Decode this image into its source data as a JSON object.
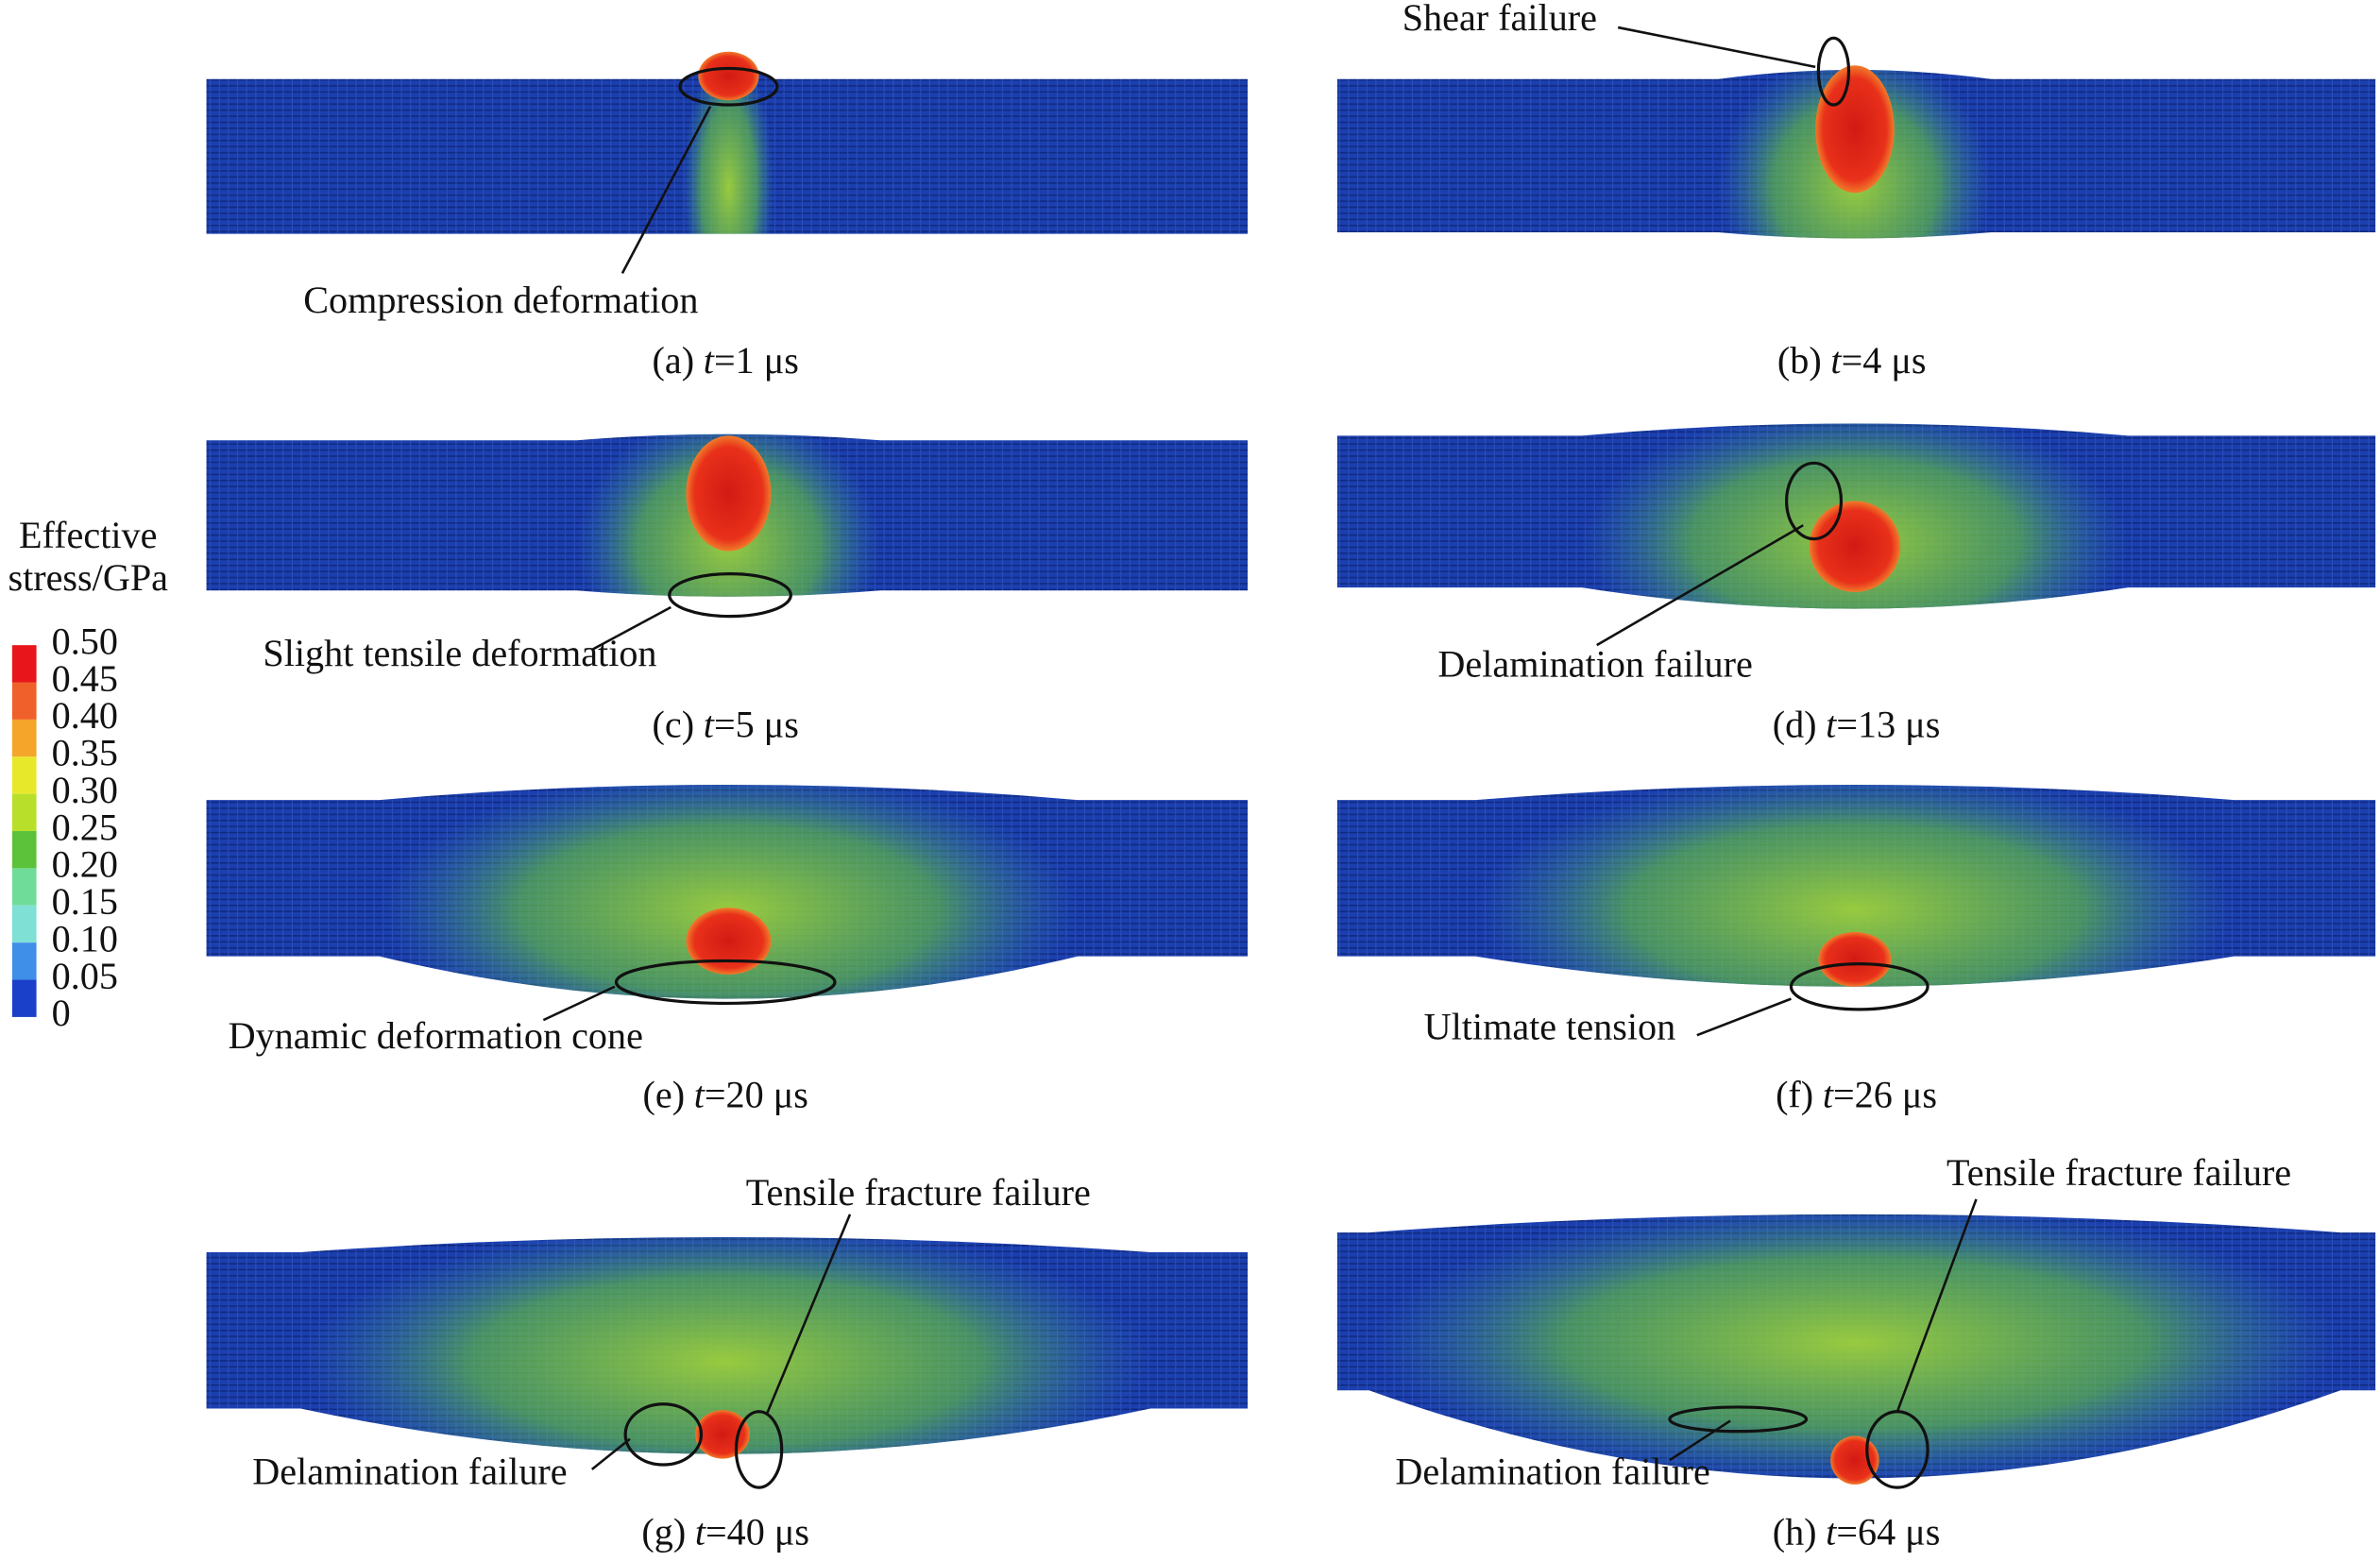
{
  "panels": [
    {
      "caption": {
        "label": "(a)",
        "variable": "t",
        "value": "=1 μs"
      },
      "annotations": [
        "Compression deformation"
      ]
    },
    {
      "caption": {
        "label": "(b)",
        "variable": "t",
        "value": "=4 μs"
      },
      "annotations": [
        "Shear failure"
      ]
    },
    {
      "caption": {
        "label": "(c)",
        "variable": "t",
        "value": "=5 μs"
      },
      "annotations": [
        "Slight tensile deformation"
      ]
    },
    {
      "caption": {
        "label": "(d)",
        "variable": "t",
        "value": "=13 μs"
      },
      "annotations": [
        "Delamination failure"
      ]
    },
    {
      "caption": {
        "label": "(e)",
        "variable": "t",
        "value": "=20 μs"
      },
      "annotations": [
        "Dynamic deformation cone"
      ]
    },
    {
      "caption": {
        "label": "(f)",
        "variable": "t",
        "value": "=26 μs"
      },
      "annotations": [
        "Ultimate tension"
      ]
    },
    {
      "caption": {
        "label": "(g)",
        "variable": "t",
        "value": "=40 μs"
      },
      "annotations": [
        "Tensile fracture failure",
        "Delamination failure"
      ]
    },
    {
      "caption": {
        "label": "(h)",
        "variable": "t",
        "value": "=64 μs"
      },
      "annotations": [
        "Tensile fracture failure",
        "Delamination failure"
      ]
    }
  ],
  "legend": {
    "title": [
      "Effective",
      "stress/GPa"
    ],
    "levels": [
      {
        "value": 0.5,
        "label": "0.50"
      },
      0.45,
      {
        "value": 0.4,
        "label": "0.40"
      },
      0.35,
      {
        "value": 0.3,
        "label": "0.30"
      },
      0.25,
      {
        "value": 0.2,
        "label": "0.20"
      },
      0.15,
      {
        "value": 0.1,
        "label": "0.10"
      },
      0.05,
      0
    ],
    "colors": [
      "#e8161b",
      "#f0602a",
      "#f4a52a",
      "#e8e82a",
      "#b8e02a",
      "#5cc23a",
      "#6fdc9a",
      "#7fe0d6",
      "#3f8ee8",
      "#1a3fc8"
    ]
  }
}
